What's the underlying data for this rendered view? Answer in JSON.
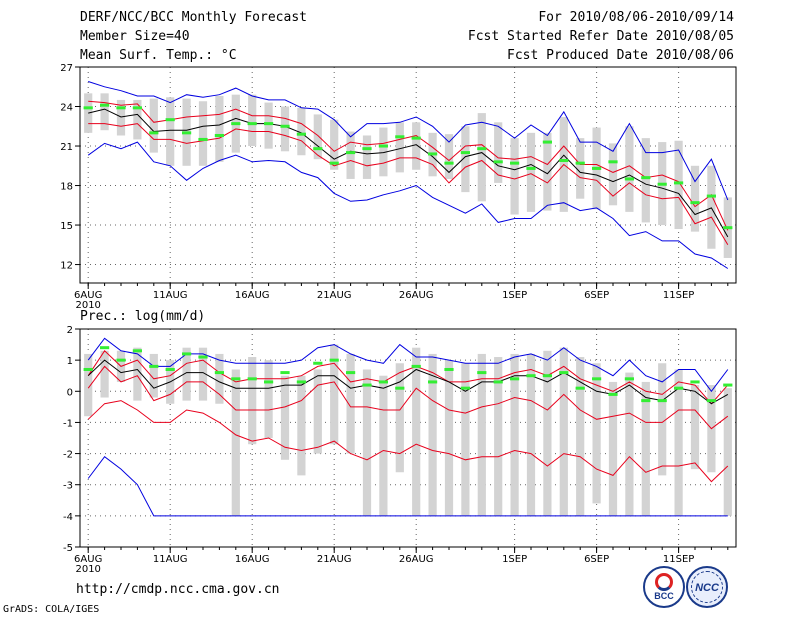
{
  "header": {
    "title": "DERF/NCC/BCC Monthly Forecast",
    "member_size": "Member Size=40",
    "variable": "Mean Surf. Temp.: °C",
    "period": "For 2010/08/06-2010/09/14",
    "started": "Fcst Started Refer Date 2010/08/05",
    "produced": "Fcst Produced Date 2010/08/06"
  },
  "footer": {
    "url": "http://cmdp.ncc.cma.gov.cn",
    "credit": "GrADS: COLA/IGES",
    "logo_bcc_text": "BCC",
    "logo_ncc_text": "NCC"
  },
  "colors": {
    "bar": "#d3d3d3",
    "mean": "#000000",
    "inner": "#e8001c",
    "outer": "#0000e0",
    "marker": "#33ee33"
  },
  "chart_data": [
    {
      "type": "line",
      "title": "Mean Surf. Temp.: °C",
      "ylim": [
        10.6,
        27
      ],
      "yticks": [
        12,
        15,
        18,
        21,
        24,
        27
      ],
      "xlim": [
        -0.5,
        39.5
      ],
      "xticks": [
        {
          "x": 0,
          "label": "6AUG"
        },
        {
          "x": 5,
          "label": "11AUG"
        },
        {
          "x": 10,
          "label": "16AUG"
        },
        {
          "x": 15,
          "label": "21AUG"
        },
        {
          "x": 20,
          "label": "26AUG"
        },
        {
          "x": 26,
          "label": "1SEP"
        },
        {
          "x": 31,
          "label": "6SEP"
        },
        {
          "x": 36,
          "label": "11SEP"
        }
      ],
      "first_label_year": "2010",
      "grid": true,
      "series": [
        {
          "name": "bar_low",
          "values": [
            22,
            22.2,
            21.8,
            21.5,
            20.5,
            19.5,
            19.5,
            19.5,
            19.8,
            20.5,
            21,
            20.8,
            20.6,
            20.3,
            20,
            19.2,
            18.5,
            18.5,
            18.7,
            19,
            19.2,
            18.7,
            18.5,
            17.5,
            16.8,
            18.2,
            15.8,
            16,
            16.1,
            16,
            17,
            16.2,
            16.5,
            16,
            15.2,
            15,
            14.7,
            14.5,
            13.2,
            12.5
          ]
        },
        {
          "name": "bar_high",
          "values": [
            25,
            25,
            24.5,
            24.5,
            24.6,
            24.7,
            24.6,
            24.4,
            24.8,
            24.9,
            24.9,
            24.3,
            24,
            23.9,
            23.4,
            23,
            22.1,
            21.8,
            22.4,
            22.8,
            22.8,
            22,
            21.9,
            22.5,
            23.5,
            22.8,
            21.6,
            22,
            22,
            23.2,
            21.6,
            22.4,
            21.2,
            22.5,
            21.6,
            21.3,
            21.4,
            19.5,
            19.5,
            17.1
          ]
        },
        {
          "name": "outer_low",
          "values": [
            20.3,
            21.2,
            20.8,
            21.3,
            19.8,
            19.5,
            18.4,
            19.3,
            19.9,
            20.3,
            19.8,
            19.9,
            19.8,
            19,
            18.6,
            17.4,
            16.8,
            16.9,
            17.3,
            17.6,
            18,
            17.1,
            16.5,
            15.9,
            16.6,
            15.2,
            15.5,
            15.5,
            16.5,
            16.7,
            16.1,
            16.3,
            15.5,
            14.2,
            14.5,
            13.8,
            13.8,
            12.8,
            12.5,
            11.7
          ]
        },
        {
          "name": "outer_high",
          "values": [
            25.9,
            25.5,
            25.2,
            24.8,
            24.8,
            24.3,
            24.9,
            24.7,
            24.9,
            25.4,
            24.8,
            24.5,
            24.5,
            23.9,
            23.8,
            23,
            21.7,
            22.7,
            22.7,
            22.8,
            23.2,
            22.5,
            21.3,
            22.6,
            22.8,
            22.5,
            21.6,
            22.6,
            21.8,
            23.6,
            21.3,
            21.3,
            20.6,
            22.7,
            20.5,
            20.5,
            20.7,
            18.3,
            20,
            16.9
          ]
        },
        {
          "name": "inner_low",
          "values": [
            22.7,
            22.7,
            22.5,
            22.7,
            21.5,
            21.5,
            21.2,
            21.4,
            21.6,
            22.3,
            22.1,
            22.1,
            21.8,
            21.4,
            20.3,
            19.5,
            19.9,
            19.5,
            19.7,
            20.1,
            20.1,
            19.6,
            18.2,
            19.4,
            19.9,
            18.8,
            18.5,
            18.9,
            18.2,
            19.6,
            18.6,
            18.4,
            17.2,
            18.2,
            17.3,
            17,
            17.1,
            15.1,
            15.6,
            13.5
          ]
        },
        {
          "name": "mean",
          "values": [
            23.5,
            23.8,
            23.2,
            23.4,
            22.1,
            22.2,
            22.2,
            22.5,
            22.6,
            23.1,
            22.7,
            22.7,
            22.5,
            22,
            21,
            20,
            20.6,
            20.4,
            20.5,
            20.8,
            21.1,
            20.2,
            19,
            20.2,
            20.5,
            19.5,
            19.2,
            19.6,
            18.9,
            20.3,
            19,
            18.8,
            18.3,
            18.8,
            18.1,
            17.8,
            17.4,
            15.8,
            16.3,
            14.1
          ]
        },
        {
          "name": "inner_high",
          "values": [
            24.4,
            24.3,
            24.1,
            24.2,
            22.8,
            23,
            23.2,
            23.3,
            23.4,
            23.8,
            23.3,
            23.3,
            23.1,
            22.7,
            21.8,
            20.6,
            21.3,
            21.1,
            21.2,
            21.5,
            21.8,
            20.9,
            19.9,
            21,
            21.1,
            20.1,
            20,
            20.2,
            19.6,
            21,
            19.6,
            19.6,
            19,
            19.5,
            18.6,
            18.8,
            18.3,
            16.4,
            17.3,
            14.6
          ]
        },
        {
          "name": "marker",
          "values": [
            23.9,
            24.1,
            23.9,
            23.9,
            22,
            23,
            22,
            21.5,
            21.8,
            22.7,
            22.7,
            22.7,
            22.5,
            21.9,
            20.8,
            19.7,
            20.5,
            20.8,
            21,
            21.7,
            21.6,
            20.4,
            19.7,
            20.5,
            20.8,
            19.8,
            19.7,
            19.3,
            21.3,
            19.9,
            19.7,
            19.3,
            19.8,
            18.5,
            18.6,
            18.1,
            18.2,
            16.7,
            17.2,
            14.8
          ]
        }
      ]
    },
    {
      "type": "line",
      "title": "Prec.: log(mm/d)",
      "ylim": [
        -5,
        2
      ],
      "yticks": [
        -5,
        -4,
        -3,
        -2,
        -1,
        0,
        1,
        2
      ],
      "xlim": [
        -0.5,
        39.5
      ],
      "xticks": [
        {
          "x": 0,
          "label": "6AUG"
        },
        {
          "x": 5,
          "label": "11AUG"
        },
        {
          "x": 10,
          "label": "16AUG"
        },
        {
          "x": 15,
          "label": "21AUG"
        },
        {
          "x": 20,
          "label": "26AUG"
        },
        {
          "x": 26,
          "label": "1SEP"
        },
        {
          "x": 31,
          "label": "6SEP"
        },
        {
          "x": 36,
          "label": "11SEP"
        }
      ],
      "first_label_year": "2010",
      "grid": true,
      "series": [
        {
          "name": "bar_low",
          "values": [
            -0.8,
            -0.2,
            0.3,
            -0.3,
            -0.2,
            -0.4,
            -0.3,
            -0.3,
            -0.4,
            -4,
            -1.7,
            -1.5,
            -2.2,
            -2.7,
            -2,
            -1.7,
            -2,
            -4,
            -4,
            -2.6,
            -4,
            -4,
            -4,
            -4,
            -4,
            -4,
            -4,
            -4,
            -4,
            -4,
            -4,
            -3.6,
            -4,
            -4,
            -4,
            -2.7,
            -4,
            -2.5,
            -2.6,
            -4
          ]
        },
        {
          "name": "bar_high",
          "values": [
            1.2,
            1.3,
            1.3,
            1.4,
            1.2,
            1,
            1.4,
            1.4,
            1.2,
            0.7,
            1.1,
            1,
            0.5,
            0.5,
            0.7,
            1.5,
            1.2,
            0.7,
            0.5,
            0.9,
            1.4,
            1.2,
            1,
            0.9,
            1.2,
            1.1,
            1.2,
            1.2,
            1.3,
            1.4,
            1.1,
            0.9,
            0.3,
            0.6,
            0.3,
            0.9,
            0.7,
            0.2,
            0.2,
            0.1
          ]
        },
        {
          "name": "outer_low",
          "values": [
            -2.8,
            -2.1,
            -2.5,
            -3,
            -4,
            -4,
            -4,
            -4,
            -4,
            -4,
            -4,
            -4,
            -4,
            -4,
            -4,
            -4,
            -4,
            -4,
            -4,
            -4,
            -4,
            -4,
            -4,
            -4,
            -4,
            -4,
            -4,
            -4,
            -4,
            -4,
            -4,
            -4,
            -4,
            -4,
            -4,
            -4,
            -4,
            -4,
            -4,
            -4
          ]
        },
        {
          "name": "outer_high",
          "values": [
            1,
            1.7,
            1.3,
            1.2,
            0.8,
            0.8,
            1.2,
            1.2,
            1,
            0.9,
            0.9,
            0.9,
            0.9,
            1,
            1.4,
            1.5,
            1.2,
            1,
            0.9,
            1.5,
            1.1,
            1.1,
            1,
            0.9,
            0.9,
            0.9,
            1.1,
            1.2,
            1,
            1.4,
            1,
            0.8,
            0.5,
            1,
            0.5,
            0.3,
            0.7,
            0.7,
            0,
            0.7
          ]
        },
        {
          "name": "inner_low",
          "values": [
            -0.9,
            -0.4,
            -0.3,
            -0.6,
            -1,
            -1,
            -0.6,
            -0.7,
            -1,
            -1.4,
            -1.6,
            -1.5,
            -1.8,
            -1.9,
            -1.8,
            -1.6,
            -2,
            -2.2,
            -1.9,
            -2,
            -1.7,
            -1.9,
            -2,
            -2.2,
            -2.1,
            -2.1,
            -1.9,
            -2,
            -2.4,
            -2,
            -2.1,
            -2.5,
            -2.7,
            -2.1,
            -2.6,
            -2.4,
            -2.4,
            -2.3,
            -2.9,
            -2.4
          ]
        },
        {
          "name": "inner_high",
          "values": [
            0.1,
            0.8,
            0.3,
            0.5,
            -0.3,
            -0.1,
            0.3,
            0.3,
            -0.1,
            -0.6,
            -0.6,
            -0.6,
            -0.5,
            -0.3,
            0.2,
            0.3,
            -0.5,
            -0.5,
            -0.6,
            -0.6,
            0.1,
            -0.3,
            -0.6,
            -0.7,
            -0.5,
            -0.4,
            -0.2,
            -0.3,
            -0.6,
            -0.1,
            -0.6,
            -0.9,
            -0.8,
            -0.7,
            -1,
            -1,
            -0.6,
            -0.6,
            -1.2,
            -0.8
          ]
        },
        {
          "name": "inner_upper",
          "values": [
            0.5,
            1.3,
            0.8,
            1,
            0.4,
            0.5,
            0.9,
            1,
            0.6,
            0.3,
            0.4,
            0.4,
            0.4,
            0.5,
            0.8,
            0.9,
            0.3,
            0.4,
            0.3,
            0.6,
            0.8,
            0.6,
            0.3,
            0.3,
            0.4,
            0.4,
            0.6,
            0.7,
            0.5,
            0.8,
            0.4,
            0.2,
            0,
            0.3,
            0,
            -0.1,
            0.3,
            0.2,
            -0.4,
            0.2
          ]
        },
        {
          "name": "mean",
          "values": [
            0.5,
            1,
            0.6,
            0.7,
            0.1,
            0.3,
            0.6,
            0.6,
            0.3,
            0.1,
            0.1,
            0.1,
            0.2,
            0.2,
            0.5,
            0.5,
            0.1,
            0.2,
            0.1,
            0.3,
            0.7,
            0.5,
            0.3,
            0,
            0.3,
            0.3,
            0.5,
            0.5,
            0.3,
            0.6,
            0.3,
            0,
            -0.1,
            0.2,
            -0.2,
            -0.3,
            0.1,
            0,
            -0.4,
            -0.1
          ]
        },
        {
          "name": "marker",
          "values": [
            0.7,
            1.4,
            1,
            1.3,
            0.8,
            0.7,
            1.2,
            1.1,
            0.6,
            0.4,
            0.4,
            0.3,
            0.6,
            0.3,
            0.9,
            1,
            0.6,
            0.2,
            0.3,
            0.1,
            0.8,
            0.3,
            0.7,
            0.1,
            0.6,
            0.3,
            0.4,
            0.5,
            0.5,
            0.6,
            0.1,
            0.4,
            -0.1,
            0.4,
            -0.3,
            -0.3,
            0.1,
            0.3,
            -0.3,
            0.2
          ]
        }
      ]
    }
  ]
}
